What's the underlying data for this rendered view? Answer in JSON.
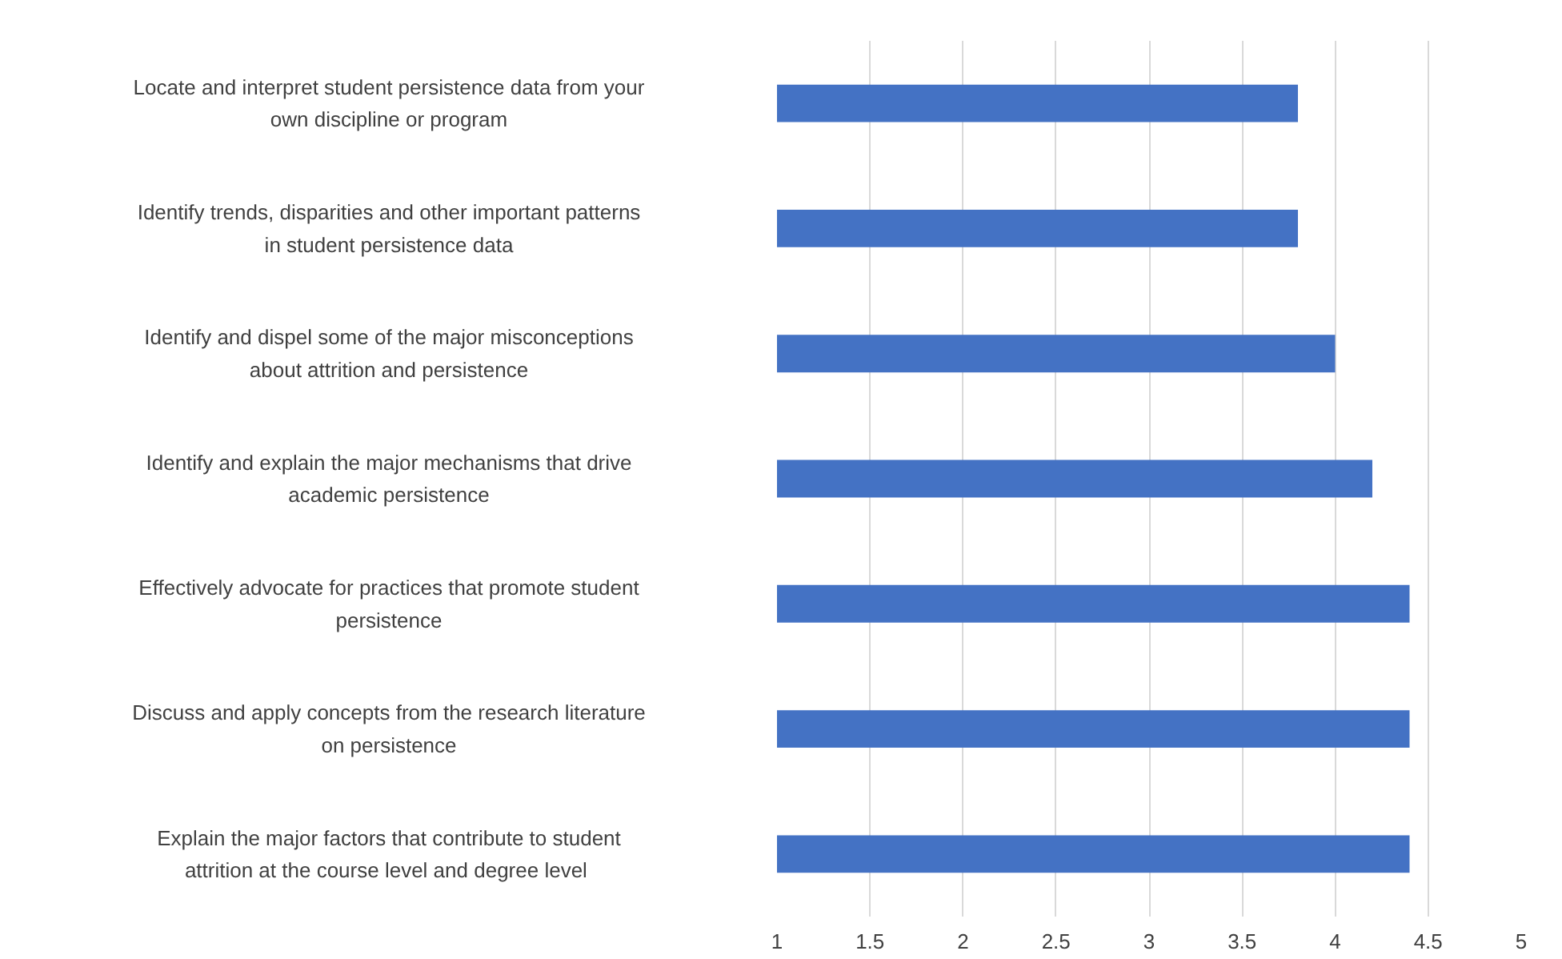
{
  "chart_data": {
    "type": "bar",
    "orientation": "horizontal",
    "categories": [
      "Locate and interpret student persistence data from your own discipline or program",
      "Identify trends, disparities and other important patterns in student persistence data",
      "Identify and dispel some of the major misconceptions about attrition and persistence",
      "Identify and explain the major mechanisms that drive academic persistence",
      "Effectively advocate for practices that promote student persistence",
      "Discuss and apply concepts from the research literature on persistence",
      "Explain the major factors that contribute to student attrition at the course level and degree  level"
    ],
    "values": [
      3.8,
      3.8,
      4.0,
      4.2,
      4.4,
      4.4,
      4.4
    ],
    "color": "#4472c4",
    "xlim": [
      1,
      5
    ],
    "xticks": [
      1,
      1.5,
      2,
      2.5,
      3,
      3.5,
      4,
      4.5,
      5
    ],
    "grid": "x",
    "legend": false
  }
}
